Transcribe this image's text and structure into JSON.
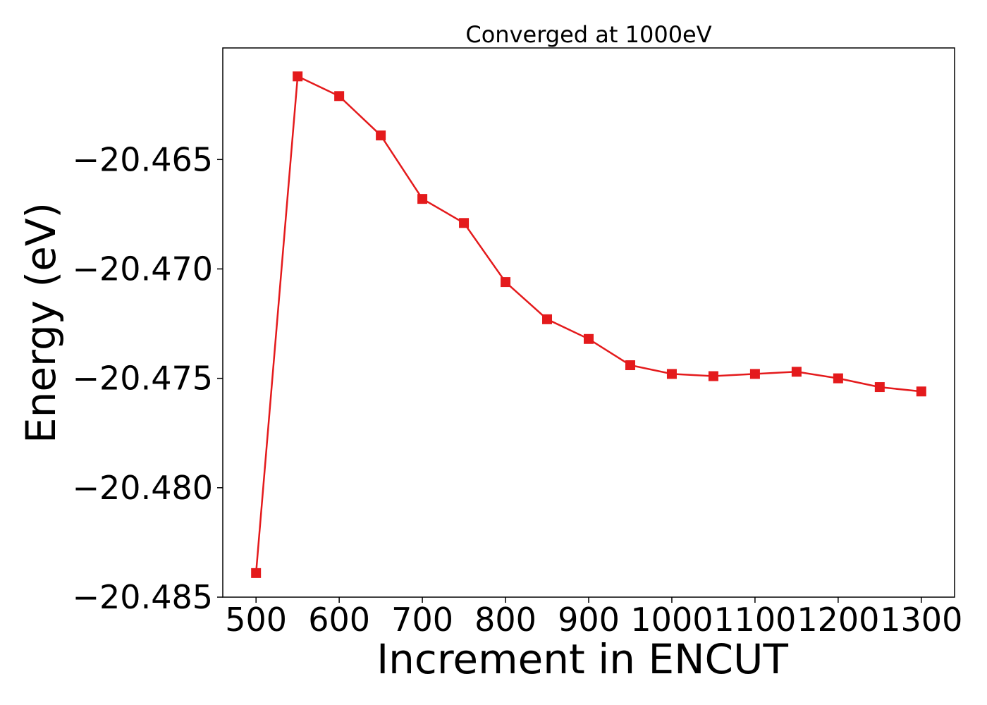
{
  "chart_data": {
    "type": "line",
    "title": "Converged at 1000eV",
    "xlabel": "Increment in ENCUT",
    "ylabel": "Energy (eV)",
    "xlim": [
      460,
      1340
    ],
    "ylim": [
      -20.485,
      -20.4599
    ],
    "grid": false,
    "x": [
      500,
      550,
      600,
      650,
      700,
      750,
      800,
      850,
      900,
      950,
      1000,
      1050,
      1100,
      1150,
      1200,
      1250,
      1300
    ],
    "series": [
      {
        "values": [
          -20.4839,
          -20.4612,
          -20.4621,
          -20.4639,
          -20.4668,
          -20.4679,
          -20.4706,
          -20.4723,
          -20.4732,
          -20.4744,
          -20.4748,
          -20.4749,
          -20.4748,
          -20.4747,
          -20.475,
          -20.4754,
          -20.4756
        ],
        "color": "#e41a1c",
        "marker": "square"
      }
    ],
    "x_ticks": [
      "500",
      "600",
      "700",
      "800",
      "900",
      "1000",
      "1100",
      "1200",
      "1300"
    ],
    "y_ticks": [
      "−20.465",
      "−20.470",
      "−20.475",
      "−20.480",
      "−20.485"
    ]
  }
}
